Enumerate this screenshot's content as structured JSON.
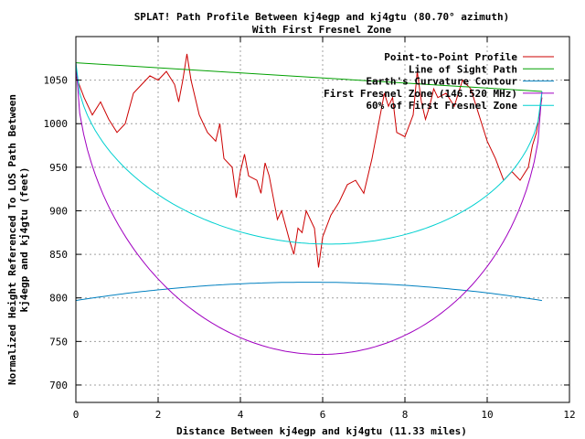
{
  "chart_data": {
    "type": "line",
    "title": "SPLAT! Path Profile Between kj4egp and kj4gtu (80.70° azimuth)",
    "subtitle": "With First Fresnel Zone",
    "xlabel": "Distance Between kj4egp and kj4gtu (11.33 miles)",
    "ylabel_line1": "Normalized Height Referenced To LOS Path Between",
    "ylabel_line2": "kj4egp and kj4gtu (feet)",
    "xlim": [
      0,
      12
    ],
    "ylim": [
      680,
      1100
    ],
    "x_ticks": [
      0,
      2,
      4,
      6,
      8,
      10,
      12
    ],
    "y_ticks": [
      700,
      750,
      800,
      850,
      900,
      950,
      1000,
      1050
    ],
    "grid": true,
    "legend_position": "top-right",
    "series": [
      {
        "name": "Point-to-Point Profile",
        "color": "#cc0000",
        "points": [
          [
            0,
            1055
          ],
          [
            0.2,
            1030
          ],
          [
            0.4,
            1010
          ],
          [
            0.6,
            1025
          ],
          [
            0.8,
            1005
          ],
          [
            1.0,
            990
          ],
          [
            1.2,
            1000
          ],
          [
            1.4,
            1035
          ],
          [
            1.6,
            1045
          ],
          [
            1.8,
            1055
          ],
          [
            2.0,
            1050
          ],
          [
            2.2,
            1060
          ],
          [
            2.4,
            1045
          ],
          [
            2.5,
            1025
          ],
          [
            2.6,
            1050
          ],
          [
            2.7,
            1080
          ],
          [
            2.8,
            1050
          ],
          [
            3.0,
            1010
          ],
          [
            3.2,
            990
          ],
          [
            3.4,
            980
          ],
          [
            3.5,
            1000
          ],
          [
            3.6,
            960
          ],
          [
            3.8,
            950
          ],
          [
            3.9,
            915
          ],
          [
            4.0,
            945
          ],
          [
            4.1,
            965
          ],
          [
            4.2,
            940
          ],
          [
            4.4,
            935
          ],
          [
            4.5,
            920
          ],
          [
            4.6,
            955
          ],
          [
            4.7,
            940
          ],
          [
            4.8,
            915
          ],
          [
            4.9,
            890
          ],
          [
            5.0,
            900
          ],
          [
            5.2,
            865
          ],
          [
            5.3,
            850
          ],
          [
            5.4,
            880
          ],
          [
            5.5,
            875
          ],
          [
            5.6,
            900
          ],
          [
            5.8,
            880
          ],
          [
            5.9,
            835
          ],
          [
            6.0,
            870
          ],
          [
            6.2,
            895
          ],
          [
            6.4,
            910
          ],
          [
            6.6,
            930
          ],
          [
            6.8,
            935
          ],
          [
            7.0,
            920
          ],
          [
            7.2,
            960
          ],
          [
            7.4,
            1010
          ],
          [
            7.5,
            1035
          ],
          [
            7.6,
            1020
          ],
          [
            7.7,
            1030
          ],
          [
            7.8,
            990
          ],
          [
            8.0,
            985
          ],
          [
            8.2,
            1010
          ],
          [
            8.3,
            1060
          ],
          [
            8.4,
            1025
          ],
          [
            8.5,
            1005
          ],
          [
            8.6,
            1020
          ],
          [
            8.7,
            1040
          ],
          [
            8.8,
            1030
          ],
          [
            9.0,
            1035
          ],
          [
            9.2,
            1020
          ],
          [
            9.4,
            1050
          ],
          [
            9.6,
            1040
          ],
          [
            9.8,
            1010
          ],
          [
            10.0,
            980
          ],
          [
            10.2,
            960
          ],
          [
            10.4,
            935
          ],
          [
            10.6,
            945
          ],
          [
            10.8,
            935
          ],
          [
            11.0,
            950
          ],
          [
            11.1,
            975
          ],
          [
            11.2,
            990
          ],
          [
            11.33,
            1030
          ]
        ]
      },
      {
        "name": "Line of Sight Path",
        "color": "#00a000",
        "points": [
          [
            0,
            1070
          ],
          [
            11.33,
            1037
          ]
        ]
      },
      {
        "name": "Earth's Curvature Contour",
        "color": "#0080c0",
        "curve": "parabola",
        "x_start": 0,
        "x_end": 11.33,
        "y_ends": 797,
        "y_peak": 818
      },
      {
        "name": "First Fresnel Zone (146.520 MHz)",
        "color": "#a000c0",
        "curve": "ellipse",
        "x_start": 0,
        "x_end": 11.33,
        "y_start": 1070,
        "y_end": 1037,
        "depth_mid": 318
      },
      {
        "name": "60% of First Fresnel Zone",
        "color": "#00d0d0",
        "curve": "ellipse",
        "x_start": 0,
        "x_end": 11.33,
        "y_start": 1070,
        "y_end": 1037,
        "depth_mid": 191
      }
    ]
  }
}
